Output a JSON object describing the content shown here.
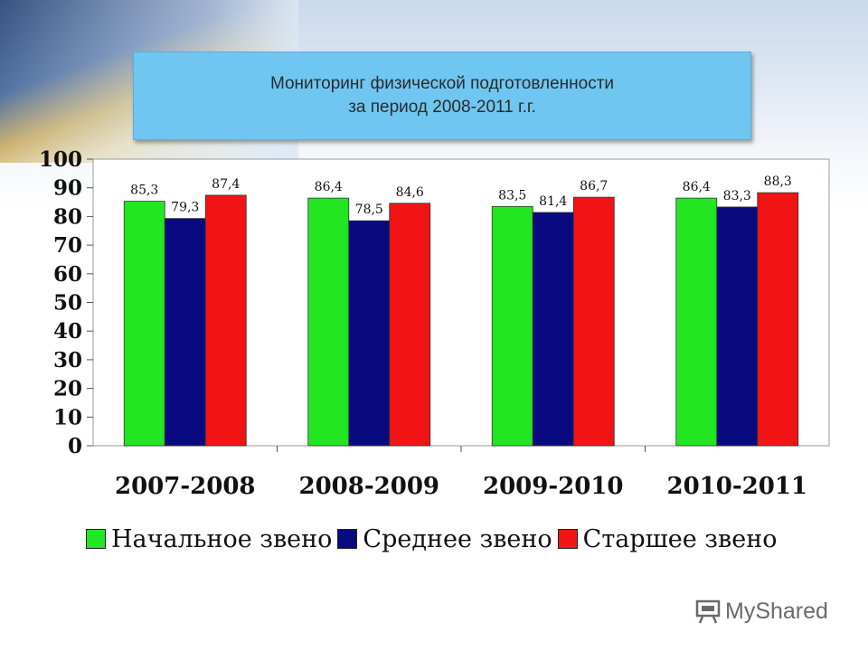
{
  "header": {
    "title_line1": "Мониторинг физической подготовленности",
    "title_line2": "за период 2008-2011 г.г."
  },
  "chart_data": {
    "type": "bar",
    "title": "Мониторинг физической подготовленности за период 2008-2011 г.г.",
    "categories": [
      "2007-2008",
      "2008-2009",
      "2009-2010",
      "2010-2011"
    ],
    "series": [
      {
        "name": "Начальное звено",
        "color": "#22e622",
        "values": [
          85.3,
          86.4,
          83.5,
          86.4
        ],
        "labels": [
          "85,3",
          "86,4",
          "83,5",
          "86,4"
        ]
      },
      {
        "name": "Среднее звено",
        "color": "#0a0a80",
        "values": [
          79.3,
          78.5,
          81.4,
          83.3
        ],
        "labels": [
          "79,3",
          "78,5",
          "81,4",
          "83,3"
        ]
      },
      {
        "name": "Старшее звено",
        "color": "#f01414",
        "values": [
          87.4,
          84.6,
          86.7,
          88.3
        ],
        "labels": [
          "87,4",
          "84,6",
          "86,7",
          "88,3"
        ]
      }
    ],
    "yticks": [
      "0",
      "10",
      "20",
      "30",
      "40",
      "50",
      "60",
      "70",
      "80",
      "90",
      "100"
    ],
    "ylim": [
      0,
      100
    ],
    "xlabel": "",
    "ylabel": "",
    "grid": false,
    "legend_position": "bottom"
  },
  "watermark": {
    "text": "MyShared",
    "icon": "presentation-board-icon"
  }
}
